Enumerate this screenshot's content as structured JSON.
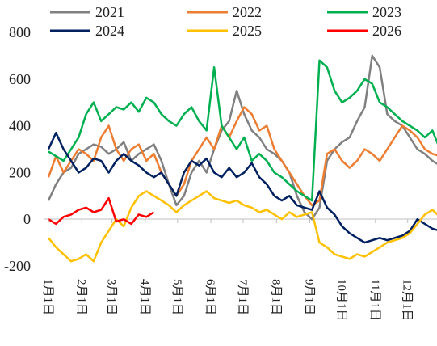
{
  "chart_data": {
    "type": "line",
    "x": [
      0,
      7,
      14,
      21,
      28,
      35,
      42,
      49,
      56,
      63,
      70,
      77,
      84,
      91,
      98,
      105,
      112,
      119,
      126,
      133,
      140,
      147,
      154,
      161,
      168,
      175,
      182,
      189,
      196,
      203,
      210,
      217,
      224,
      231,
      238,
      245,
      252,
      259,
      266,
      273,
      280,
      287,
      294,
      301,
      308,
      315,
      322,
      329,
      336,
      343,
      350,
      357,
      364
    ],
    "xlim": [
      0,
      365
    ],
    "xticks": [
      {
        "value": 0,
        "label": "1月1日"
      },
      {
        "value": 31,
        "label": "2月1日"
      },
      {
        "value": 59,
        "label": "3月1日"
      },
      {
        "value": 90,
        "label": "4月1日"
      },
      {
        "value": 120,
        "label": "5月1日"
      },
      {
        "value": 151,
        "label": "6月1日"
      },
      {
        "value": 181,
        "label": "7月1日"
      },
      {
        "value": 212,
        "label": "8月1日"
      },
      {
        "value": 243,
        "label": "9月1日"
      },
      {
        "value": 273,
        "label": "10月1日"
      },
      {
        "value": 304,
        "label": "11月1日"
      },
      {
        "value": 334,
        "label": "12月1日"
      }
    ],
    "ylim": [
      -200,
      800
    ],
    "yticks": [
      {
        "value": -200,
        "label": "-200"
      },
      0,
      200,
      400,
      600,
      800
    ],
    "series": [
      {
        "name": "2021",
        "color": "#808080",
        "values": [
          80,
          150,
          200,
          220,
          280,
          300,
          320,
          310,
          280,
          300,
          330,
          250,
          280,
          300,
          320,
          250,
          150,
          60,
          100,
          200,
          250,
          200,
          300,
          380,
          420,
          550,
          450,
          380,
          350,
          300,
          280,
          250,
          200,
          100,
          30,
          0,
          50,
          250,
          300,
          330,
          350,
          420,
          480,
          700,
          650,
          450,
          420,
          400,
          350,
          300,
          280,
          250,
          230
        ]
      },
      {
        "name": "2022",
        "color": "#ED7D31",
        "values": [
          180,
          270,
          200,
          250,
          300,
          280,
          250,
          350,
          400,
          300,
          250,
          300,
          320,
          250,
          280,
          200,
          150,
          100,
          150,
          250,
          300,
          350,
          300,
          400,
          350,
          420,
          480,
          450,
          380,
          400,
          300,
          250,
          200,
          150,
          100,
          60,
          80,
          280,
          300,
          250,
          220,
          250,
          300,
          280,
          250,
          300,
          350,
          400,
          380,
          350,
          300,
          280,
          270
        ]
      },
      {
        "name": "2023",
        "color": "#00B050",
        "values": [
          290,
          270,
          250,
          300,
          350,
          450,
          500,
          420,
          450,
          480,
          470,
          500,
          460,
          520,
          500,
          450,
          420,
          400,
          450,
          480,
          420,
          380,
          650,
          400,
          350,
          300,
          350,
          250,
          280,
          250,
          200,
          180,
          150,
          120,
          100,
          80,
          680,
          650,
          550,
          500,
          520,
          550,
          600,
          580,
          500,
          480,
          450,
          420,
          400,
          380,
          350,
          380,
          300
        ]
      },
      {
        "name": "2024",
        "color": "#002060",
        "values": [
          300,
          370,
          300,
          250,
          200,
          220,
          260,
          250,
          200,
          250,
          280,
          250,
          230,
          200,
          180,
          200,
          150,
          100,
          200,
          250,
          230,
          260,
          200,
          180,
          220,
          180,
          200,
          240,
          180,
          150,
          100,
          80,
          100,
          60,
          50,
          40,
          120,
          50,
          20,
          -30,
          -60,
          -80,
          -100,
          -90,
          -80,
          -90,
          -80,
          -70,
          -50,
          0,
          -20,
          -40,
          -50
        ]
      },
      {
        "name": "2025",
        "color": "#FFC000",
        "values": [
          -80,
          -120,
          -150,
          -180,
          -170,
          -150,
          -180,
          -100,
          -50,
          0,
          -30,
          50,
          100,
          120,
          100,
          80,
          60,
          30,
          60,
          80,
          100,
          120,
          90,
          80,
          70,
          80,
          60,
          50,
          30,
          40,
          20,
          0,
          30,
          10,
          20,
          30,
          -100,
          -120,
          -150,
          -160,
          -170,
          -150,
          -160,
          -140,
          -120,
          -100,
          -90,
          -80,
          -60,
          -20,
          20,
          40,
          10
        ]
      },
      {
        "name": "2026",
        "color": "#FF0000",
        "values": [
          0,
          -20,
          10,
          20,
          40,
          50,
          30,
          40,
          90,
          -10,
          0,
          -20,
          20,
          10,
          30,
          null,
          null,
          null,
          null,
          null,
          null,
          null,
          null,
          null,
          null,
          null,
          null,
          null,
          null,
          null,
          null,
          null,
          null,
          null,
          null,
          null,
          null,
          null,
          null,
          null,
          null,
          null,
          null,
          null,
          null,
          null,
          null,
          null,
          null,
          null,
          null,
          null,
          null
        ]
      }
    ]
  }
}
